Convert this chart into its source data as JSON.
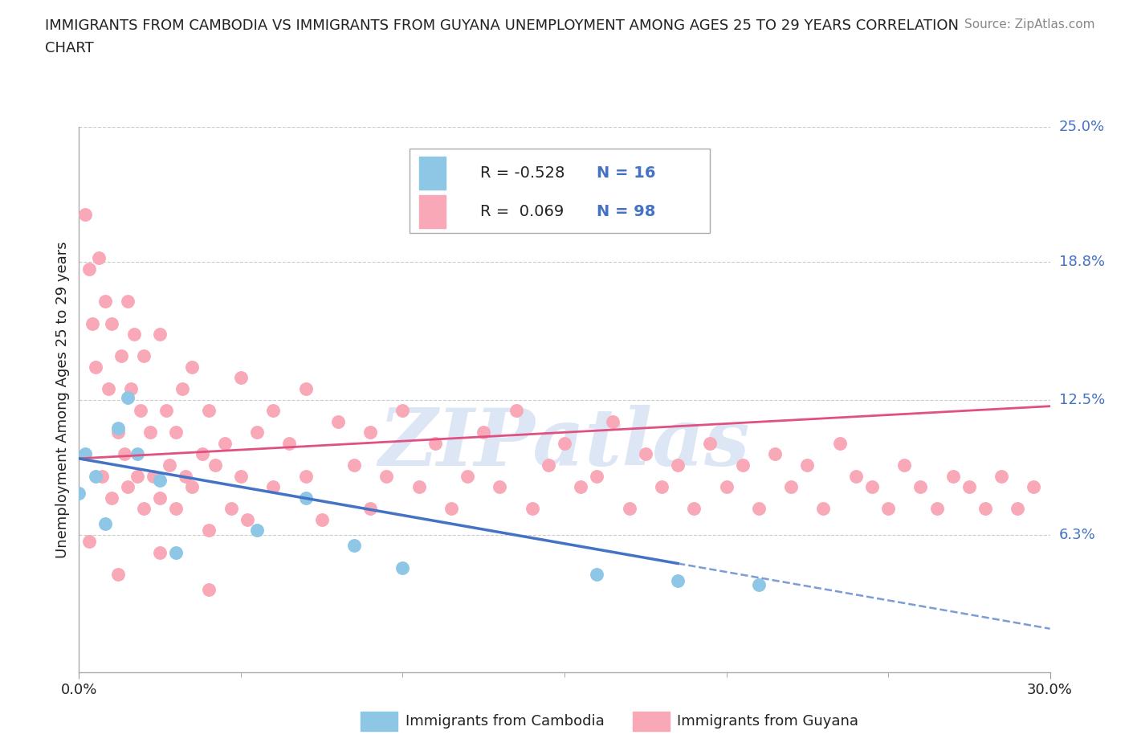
{
  "title_line1": "IMMIGRANTS FROM CAMBODIA VS IMMIGRANTS FROM GUYANA UNEMPLOYMENT AMONG AGES 25 TO 29 YEARS CORRELATION",
  "title_line2": "CHART",
  "source": "Source: ZipAtlas.com",
  "xlabel_bottom": "Immigrants from Cambodia",
  "xlabel_bottom2": "Immigrants from Guyana",
  "ylabel": "Unemployment Among Ages 25 to 29 years",
  "x_min": 0.0,
  "x_max": 0.3,
  "y_min": 0.0,
  "y_max": 0.25,
  "right_ytick_labels": [
    "6.3%",
    "12.5%",
    "18.8%",
    "25.0%"
  ],
  "right_ytick_values": [
    0.063,
    0.125,
    0.188,
    0.25
  ],
  "legend_r1": "R = -0.528",
  "legend_n1": "N = 16",
  "legend_r2": "R =  0.069",
  "legend_n2": "N = 98",
  "cambodia_color": "#8ec6e6",
  "guyana_color": "#f9a8b8",
  "trend_cambodia_color": "#4472c4",
  "trend_guyana_color": "#e05080",
  "watermark": "ZIPatlas",
  "watermark_color": "#dce6f5",
  "grid_color": "#cccccc",
  "label_color": "#4472c4",
  "text_color": "#222222",
  "source_color": "#888888",
  "cambodia_x": [
    0.0,
    0.002,
    0.005,
    0.008,
    0.012,
    0.015,
    0.018,
    0.025,
    0.03,
    0.055,
    0.07,
    0.085,
    0.1,
    0.16,
    0.185,
    0.21
  ],
  "cambodia_y": [
    0.082,
    0.1,
    0.09,
    0.068,
    0.112,
    0.126,
    0.1,
    0.088,
    0.055,
    0.065,
    0.08,
    0.058,
    0.048,
    0.045,
    0.042,
    0.04
  ],
  "cambodia_trend_x": [
    0.0,
    0.185,
    0.3
  ],
  "cambodia_trend_y": [
    0.098,
    0.048,
    0.02
  ],
  "cambodia_trend_solid_end": 0.185,
  "guyana_trend_x": [
    0.0,
    0.3
  ],
  "guyana_trend_y": [
    0.098,
    0.122
  ],
  "guyana_x": [
    0.002,
    0.003,
    0.004,
    0.005,
    0.006,
    0.007,
    0.008,
    0.009,
    0.01,
    0.01,
    0.012,
    0.013,
    0.014,
    0.015,
    0.015,
    0.016,
    0.017,
    0.018,
    0.019,
    0.02,
    0.02,
    0.022,
    0.023,
    0.025,
    0.025,
    0.027,
    0.028,
    0.03,
    0.03,
    0.032,
    0.033,
    0.035,
    0.035,
    0.038,
    0.04,
    0.04,
    0.042,
    0.045,
    0.047,
    0.05,
    0.05,
    0.052,
    0.055,
    0.06,
    0.06,
    0.065,
    0.07,
    0.07,
    0.075,
    0.08,
    0.085,
    0.09,
    0.09,
    0.095,
    0.1,
    0.105,
    0.11,
    0.115,
    0.12,
    0.125,
    0.13,
    0.135,
    0.14,
    0.145,
    0.15,
    0.155,
    0.16,
    0.165,
    0.17,
    0.175,
    0.18,
    0.185,
    0.19,
    0.195,
    0.2,
    0.205,
    0.21,
    0.215,
    0.22,
    0.225,
    0.23,
    0.235,
    0.24,
    0.245,
    0.25,
    0.255,
    0.26,
    0.265,
    0.27,
    0.275,
    0.28,
    0.285,
    0.29,
    0.295,
    0.003,
    0.012,
    0.025,
    0.04
  ],
  "guyana_y": [
    0.21,
    0.185,
    0.16,
    0.14,
    0.19,
    0.09,
    0.17,
    0.13,
    0.16,
    0.08,
    0.11,
    0.145,
    0.1,
    0.17,
    0.085,
    0.13,
    0.155,
    0.09,
    0.12,
    0.145,
    0.075,
    0.11,
    0.09,
    0.155,
    0.08,
    0.12,
    0.095,
    0.11,
    0.075,
    0.13,
    0.09,
    0.14,
    0.085,
    0.1,
    0.065,
    0.12,
    0.095,
    0.105,
    0.075,
    0.09,
    0.135,
    0.07,
    0.11,
    0.085,
    0.12,
    0.105,
    0.09,
    0.13,
    0.07,
    0.115,
    0.095,
    0.075,
    0.11,
    0.09,
    0.12,
    0.085,
    0.105,
    0.075,
    0.09,
    0.11,
    0.085,
    0.12,
    0.075,
    0.095,
    0.105,
    0.085,
    0.09,
    0.115,
    0.075,
    0.1,
    0.085,
    0.095,
    0.075,
    0.105,
    0.085,
    0.095,
    0.075,
    0.1,
    0.085,
    0.095,
    0.075,
    0.105,
    0.09,
    0.085,
    0.075,
    0.095,
    0.085,
    0.075,
    0.09,
    0.085,
    0.075,
    0.09,
    0.075,
    0.085,
    0.06,
    0.045,
    0.055,
    0.038
  ]
}
